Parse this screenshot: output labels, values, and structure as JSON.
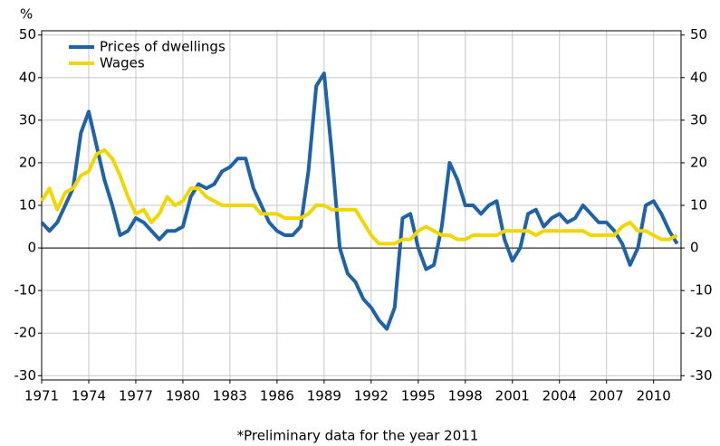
{
  "chart_data": {
    "type": "line",
    "y_label": "%",
    "footnote": "*Preliminary data for the year 2011",
    "x": [
      1971,
      1971.5,
      1972,
      1972.5,
      1973,
      1973.5,
      1974,
      1974.5,
      1975,
      1975.5,
      1976,
      1976.5,
      1977,
      1977.5,
      1978,
      1978.5,
      1979,
      1979.5,
      1980,
      1980.5,
      1981,
      1981.5,
      1982,
      1982.5,
      1983,
      1983.5,
      1984,
      1984.5,
      1985,
      1985.5,
      1986,
      1986.5,
      1987,
      1987.5,
      1988,
      1988.5,
      1989,
      1989.5,
      1990,
      1990.5,
      1991,
      1991.5,
      1992,
      1992.5,
      1993,
      1993.5,
      1994,
      1994.5,
      1995,
      1995.5,
      1996,
      1996.5,
      1997,
      1997.5,
      1998,
      1998.5,
      1999,
      1999.5,
      2000,
      2000.5,
      2001,
      2001.5,
      2002,
      2002.5,
      2003,
      2003.5,
      2004,
      2004.5,
      2005,
      2005.5,
      2006,
      2006.5,
      2007,
      2007.5,
      2008,
      2008.5,
      2009,
      2009.5,
      2010,
      2010.5,
      2011,
      2011.5
    ],
    "series": [
      {
        "name": "Prices of dwellings",
        "color": "#1f62a8",
        "values": [
          6,
          4,
          6,
          10,
          14,
          27,
          32,
          24,
          16,
          10,
          3,
          4,
          7,
          6,
          4,
          2,
          4,
          4,
          5,
          12,
          15,
          14,
          15,
          18,
          19,
          21,
          21,
          14,
          10,
          6,
          4,
          3,
          3,
          5,
          18,
          38,
          41,
          22,
          0,
          -6,
          -8,
          -12,
          -14,
          -17,
          -19,
          -14,
          7,
          8,
          0,
          -5,
          -4,
          5,
          20,
          16,
          10,
          10,
          8,
          10,
          11,
          2,
          -3,
          0,
          8,
          9,
          5,
          7,
          8,
          6,
          7,
          10,
          8,
          6,
          6,
          4,
          1,
          -4,
          0,
          10,
          11,
          8,
          4,
          1
        ]
      },
      {
        "name": "Wages",
        "color": "#f2d600",
        "values": [
          11,
          14,
          9,
          13,
          14,
          17,
          18,
          22,
          23,
          21,
          17,
          12,
          8,
          9,
          6,
          8,
          12,
          10,
          11,
          14,
          14,
          12,
          11,
          10,
          10,
          10,
          10,
          10,
          8,
          8,
          8,
          7,
          7,
          7,
          8,
          10,
          10,
          9,
          9,
          9,
          9,
          6,
          3,
          1,
          1,
          1,
          2,
          2,
          4,
          5,
          4,
          3,
          3,
          2,
          2,
          3,
          3,
          3,
          3,
          4,
          4,
          4,
          4,
          3,
          4,
          4,
          4,
          4,
          4,
          4,
          3,
          3,
          3,
          3,
          5,
          6,
          4,
          4,
          3,
          2,
          2,
          3
        ]
      }
    ],
    "xlim": [
      1971,
      2011.75
    ],
    "xticks": [
      1971,
      1974,
      1977,
      1980,
      1983,
      1986,
      1989,
      1992,
      1995,
      1998,
      2001,
      2004,
      2007,
      2010
    ],
    "ylim": [
      -31,
      51
    ],
    "yticks": [
      -30,
      -20,
      -10,
      0,
      10,
      20,
      30,
      40,
      50
    ],
    "y2lim": [
      -31,
      51
    ],
    "y2ticks": [
      -30,
      -20,
      -10,
      0,
      10,
      20,
      30,
      40,
      50
    ],
    "grid": true,
    "legend": "top-left"
  }
}
